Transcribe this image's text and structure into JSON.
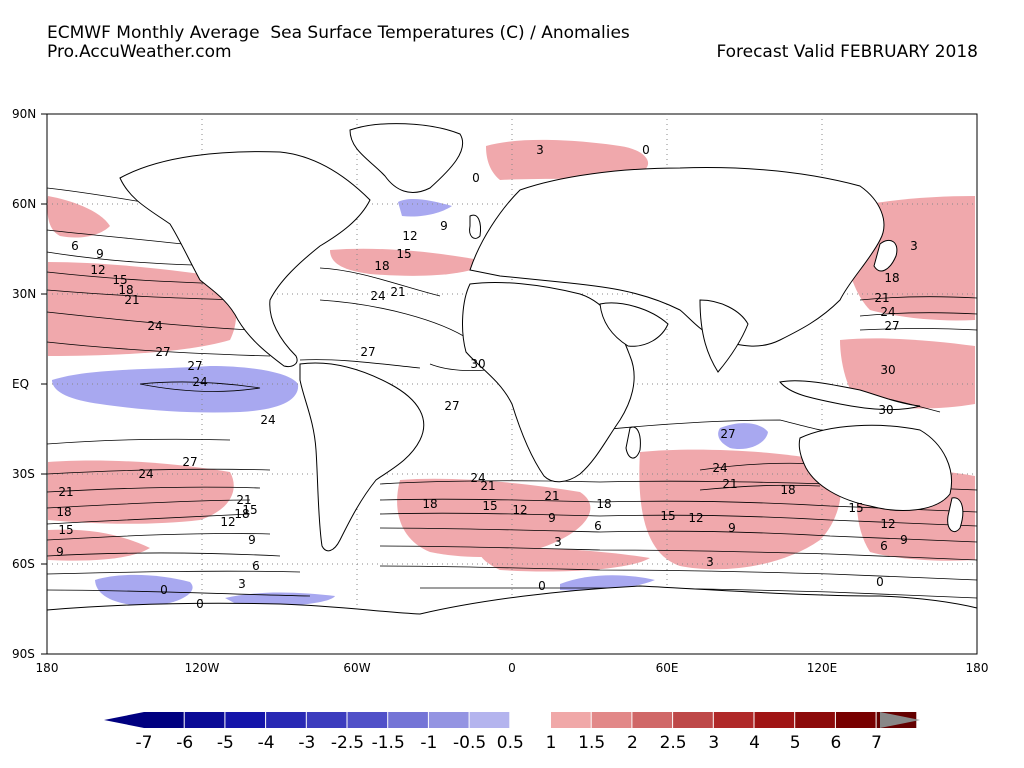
{
  "header": {
    "title": "ECMWF Monthly Average  Sea Surface Temperatures (C) / Anomalies",
    "site": "Pro.AccuWeather.com",
    "valid": "Forecast Valid FEBRUARY 2018"
  },
  "map": {
    "lat_labels": [
      "90N",
      "60N",
      "30N",
      "EQ",
      "30S",
      "60S",
      "90S"
    ],
    "lon_labels": [
      "180",
      "120W",
      "60W",
      "0",
      "60E",
      "120E",
      "180"
    ],
    "contour_values": [
      "0",
      "3",
      "6",
      "9",
      "12",
      "15",
      "18",
      "21",
      "24",
      "27",
      "30"
    ],
    "contour_label_texts": [
      "24",
      "27",
      "30",
      "27",
      "24",
      "21",
      "18",
      "15",
      "12",
      "9",
      "6",
      "3",
      "0"
    ]
  },
  "colorbar": {
    "labels": [
      "-7",
      "-6",
      "-5",
      "-4",
      "-3",
      "-2.5",
      "-1.5",
      "-1",
      "-0.5",
      "0.5",
      "1",
      "1.5",
      "2",
      "2.5",
      "3",
      "4",
      "5",
      "6",
      "7"
    ],
    "negative_colors": [
      "#000080",
      "#0a0a96",
      "#1414aa",
      "#2828b4",
      "#3c3cbe",
      "#5050c8",
      "#7474d6",
      "#9494e2",
      "#b4b4ee"
    ],
    "positive_colors": [
      "#f0a8a8",
      "#e28888",
      "#d06868",
      "#be4848",
      "#b02828",
      "#a01414",
      "#8c0a0a",
      "#780000",
      "#640000"
    ],
    "arrow_left_color": "#000080",
    "arrow_right_color": "#888888"
  },
  "colors": {
    "cool_anomaly": "#a8a8f0",
    "warm_anomaly": "#f0a8ac",
    "coast": "#000000",
    "contour": "#000000"
  }
}
